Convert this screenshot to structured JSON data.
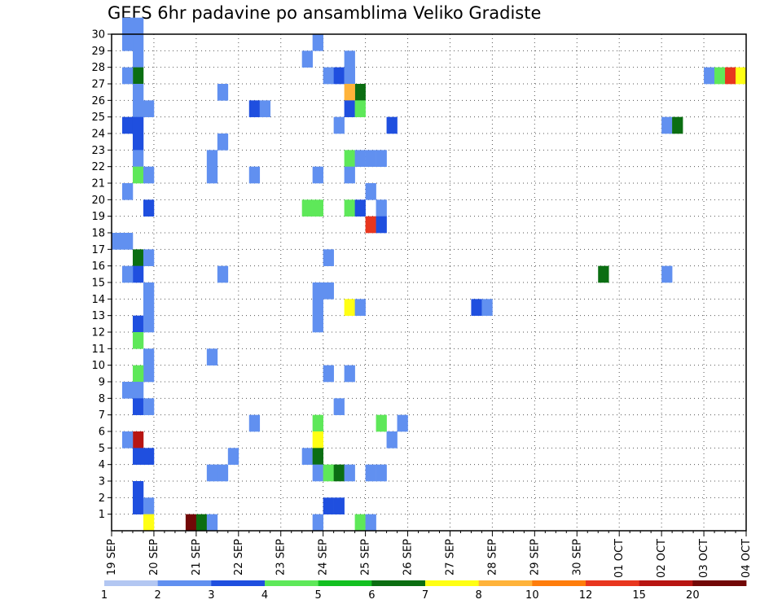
{
  "chart_data": {
    "type": "heatmap",
    "title": "GEFS 6hr padavine po ansamblima Veliko Gradiste",
    "xlabel": "",
    "ylabel": "",
    "x_tick_labels": [
      "19 SEP",
      "20 SEP",
      "21 SEP",
      "22 SEP",
      "23 SEP",
      "24 SEP",
      "25 SEP",
      "26 SEP",
      "27 SEP",
      "28 SEP",
      "29 SEP",
      "30 SEP",
      "01 OCT",
      "02 OCT",
      "03 OCT",
      "04 OCT"
    ],
    "y_tick_labels": [
      "1",
      "2",
      "3",
      "4",
      "5",
      "6",
      "7",
      "8",
      "9",
      "10",
      "11",
      "12",
      "13",
      "14",
      "15",
      "16",
      "17",
      "18",
      "19",
      "20",
      "21",
      "22",
      "23",
      "24",
      "25",
      "26",
      "27",
      "28",
      "29",
      "30"
    ],
    "xlim_slots": [
      0,
      60
    ],
    "ylim_members": [
      0,
      30
    ],
    "grid": true,
    "legend": {
      "position": "bottom",
      "boundaries": [
        "1",
        "2",
        "3",
        "4",
        "5",
        "6",
        "7",
        "8",
        "10",
        "12",
        "15",
        "20"
      ],
      "colors": [
        "#b3c7f2",
        "#6190f0",
        "#1f4fdf",
        "#5ee859",
        "#13c021",
        "#0b6e12",
        "#ffff14",
        "#ffb33a",
        "#ff7d0b",
        "#e8361e",
        "#b81512",
        "#720807"
      ]
    },
    "cells": [
      [
        1,
        30,
        1
      ],
      [
        2,
        30,
        1
      ],
      [
        2,
        29,
        1
      ],
      [
        1,
        29,
        1
      ],
      [
        2,
        28,
        1
      ],
      [
        2,
        27,
        5
      ],
      [
        1,
        27,
        1
      ],
      [
        2,
        26,
        1
      ],
      [
        2,
        25,
        1
      ],
      [
        3,
        25,
        1
      ],
      [
        1,
        24,
        2
      ],
      [
        2,
        24,
        2
      ],
      [
        2,
        23,
        2
      ],
      [
        2,
        22,
        1
      ],
      [
        2,
        21,
        3
      ],
      [
        3,
        21,
        1
      ],
      [
        1,
        20,
        1
      ],
      [
        3,
        19,
        2
      ],
      [
        0,
        17,
        1
      ],
      [
        1,
        17,
        1
      ],
      [
        2,
        16,
        5
      ],
      [
        3,
        16,
        1
      ],
      [
        2,
        15,
        2
      ],
      [
        1,
        15,
        1
      ],
      [
        3,
        14,
        1
      ],
      [
        3,
        13,
        1
      ],
      [
        2,
        12,
        2
      ],
      [
        3,
        12,
        1
      ],
      [
        2,
        11,
        3
      ],
      [
        3,
        10,
        1
      ],
      [
        3,
        9,
        1
      ],
      [
        2,
        9,
        3
      ],
      [
        1,
        8,
        1
      ],
      [
        2,
        8,
        1
      ],
      [
        2,
        7,
        2
      ],
      [
        3,
        7,
        1
      ],
      [
        2,
        5,
        10
      ],
      [
        1,
        5,
        1
      ],
      [
        2,
        4,
        2
      ],
      [
        3,
        4,
        2
      ],
      [
        2,
        2,
        2
      ],
      [
        2,
        1,
        2
      ],
      [
        3,
        1,
        1
      ],
      [
        3,
        0,
        6
      ],
      [
        10,
        26,
        1
      ],
      [
        10,
        23,
        1
      ],
      [
        9,
        22,
        1
      ],
      [
        9,
        21,
        1
      ],
      [
        10,
        15,
        1
      ],
      [
        9,
        10,
        1
      ],
      [
        11,
        4,
        1
      ],
      [
        10,
        3,
        1
      ],
      [
        9,
        3,
        1
      ],
      [
        7,
        0,
        11
      ],
      [
        8,
        0,
        5
      ],
      [
        9,
        0,
        1
      ],
      [
        13,
        25,
        2
      ],
      [
        14,
        25,
        1
      ],
      [
        13,
        21,
        1
      ],
      [
        13,
        6,
        1
      ],
      [
        19,
        29,
        1
      ],
      [
        18,
        28,
        1
      ],
      [
        20,
        27,
        1
      ],
      [
        21,
        27,
        2
      ],
      [
        22,
        27,
        1
      ],
      [
        21,
        24,
        1
      ],
      [
        19,
        21,
        1
      ],
      [
        18,
        19,
        3
      ],
      [
        19,
        19,
        3
      ],
      [
        20,
        16,
        1
      ],
      [
        19,
        14,
        1
      ],
      [
        20,
        14,
        1
      ],
      [
        19,
        13,
        1
      ],
      [
        19,
        12,
        1
      ],
      [
        20,
        9,
        1
      ],
      [
        21,
        7,
        1
      ],
      [
        19,
        6,
        3
      ],
      [
        19,
        5,
        6
      ],
      [
        18,
        4,
        1
      ],
      [
        19,
        4,
        5
      ],
      [
        19,
        3,
        1
      ],
      [
        20,
        3,
        3
      ],
      [
        21,
        3,
        5
      ],
      [
        20,
        1,
        2
      ],
      [
        21,
        1,
        2
      ],
      [
        19,
        0,
        1
      ],
      [
        22,
        28,
        1
      ],
      [
        22,
        27,
        1
      ],
      [
        23,
        26,
        5
      ],
      [
        22,
        26,
        7
      ],
      [
        22,
        25,
        2
      ],
      [
        23,
        25,
        3
      ],
      [
        22,
        22,
        3
      ],
      [
        23,
        22,
        1
      ],
      [
        24,
        22,
        1
      ],
      [
        25,
        22,
        1
      ],
      [
        22,
        21,
        1
      ],
      [
        24,
        20,
        1
      ],
      [
        22,
        19,
        3
      ],
      [
        23,
        19,
        2
      ],
      [
        25,
        19,
        1
      ],
      [
        24,
        18,
        9
      ],
      [
        25,
        18,
        2
      ],
      [
        22,
        13,
        6
      ],
      [
        23,
        13,
        1
      ],
      [
        22,
        9,
        1
      ],
      [
        25,
        6,
        3
      ],
      [
        22,
        3,
        1
      ],
      [
        24,
        3,
        1
      ],
      [
        25,
        3,
        1
      ],
      [
        23,
        0,
        3
      ],
      [
        24,
        0,
        1
      ],
      [
        26,
        24,
        2
      ],
      [
        26,
        5,
        1
      ],
      [
        27,
        6,
        1
      ],
      [
        34,
        13,
        2
      ],
      [
        35,
        13,
        1
      ],
      [
        46,
        15,
        5
      ],
      [
        52,
        24,
        1
      ],
      [
        53,
        24,
        5
      ],
      [
        52,
        15,
        1
      ],
      [
        56,
        27,
        1
      ],
      [
        57,
        27,
        3
      ],
      [
        58,
        27,
        9
      ],
      [
        59,
        27,
        6
      ]
    ]
  }
}
